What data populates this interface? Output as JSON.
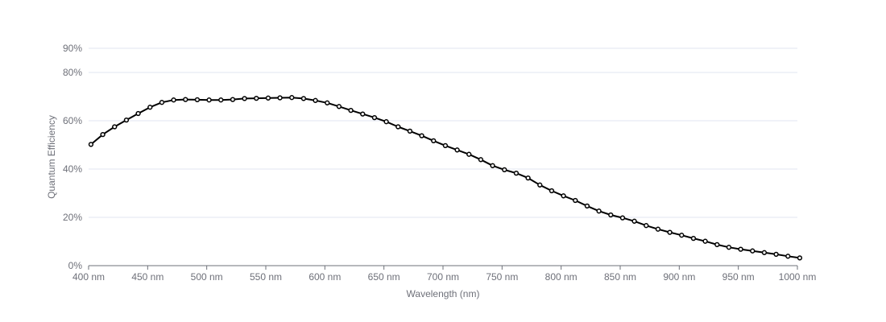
{
  "chart_data": {
    "type": "line",
    "xlabel": "Wavelength (nm)",
    "ylabel": "Quantum Efficiency",
    "x_unit_suffix": " nm",
    "xlim": [
      400,
      1000
    ],
    "x_ticks": [
      400,
      450,
      500,
      550,
      600,
      650,
      700,
      750,
      800,
      850,
      900,
      950,
      1000
    ],
    "ylim": [
      0,
      90
    ],
    "y_ticks": [
      0,
      20,
      40,
      60,
      80,
      90
    ],
    "y_tick_labels": [
      "0%",
      "20%",
      "40%",
      "60%",
      "80%",
      "90%"
    ],
    "grid": true,
    "legend": "none",
    "colors": {
      "line": "#000000",
      "marker_fill": "#ffffff",
      "grid": "#e0e6f1",
      "axis": "#6e7079",
      "text": "#6e7079"
    },
    "series": [
      {
        "x": [
          402,
          412,
          422,
          432,
          442,
          452,
          462,
          472,
          482,
          492,
          502,
          512,
          522,
          532,
          542,
          552,
          562,
          572,
          582,
          592,
          602,
          612,
          622,
          632,
          642,
          652,
          662,
          672,
          682,
          692,
          702,
          712,
          722,
          732,
          742,
          752,
          762,
          772,
          782,
          792,
          802,
          812,
          822,
          832,
          842,
          852,
          862,
          872,
          882,
          892,
          902,
          912,
          922,
          932,
          942,
          952,
          962,
          972,
          982,
          992,
          1002
        ],
        "y": [
          50.2,
          54.3,
          57.5,
          60.3,
          63,
          65.6,
          67.6,
          68.6,
          68.8,
          68.7,
          68.6,
          68.6,
          68.8,
          69.2,
          69.3,
          69.4,
          69.5,
          69.6,
          69.2,
          68.4,
          67.4,
          65.9,
          64.3,
          62.8,
          61.3,
          59.6,
          57.5,
          55.7,
          53.8,
          51.7,
          49.7,
          47.9,
          46.1,
          43.9,
          41.4,
          39.7,
          38.3,
          36.3,
          33.4,
          31,
          28.9,
          27,
          24.7,
          22.6,
          21,
          19.8,
          18.4,
          16.6,
          15.1,
          13.8,
          12.6,
          11.3,
          10.1,
          8.7,
          7.6,
          6.8,
          6.1,
          5.4,
          4.7,
          3.9,
          3.2
        ]
      }
    ]
  }
}
